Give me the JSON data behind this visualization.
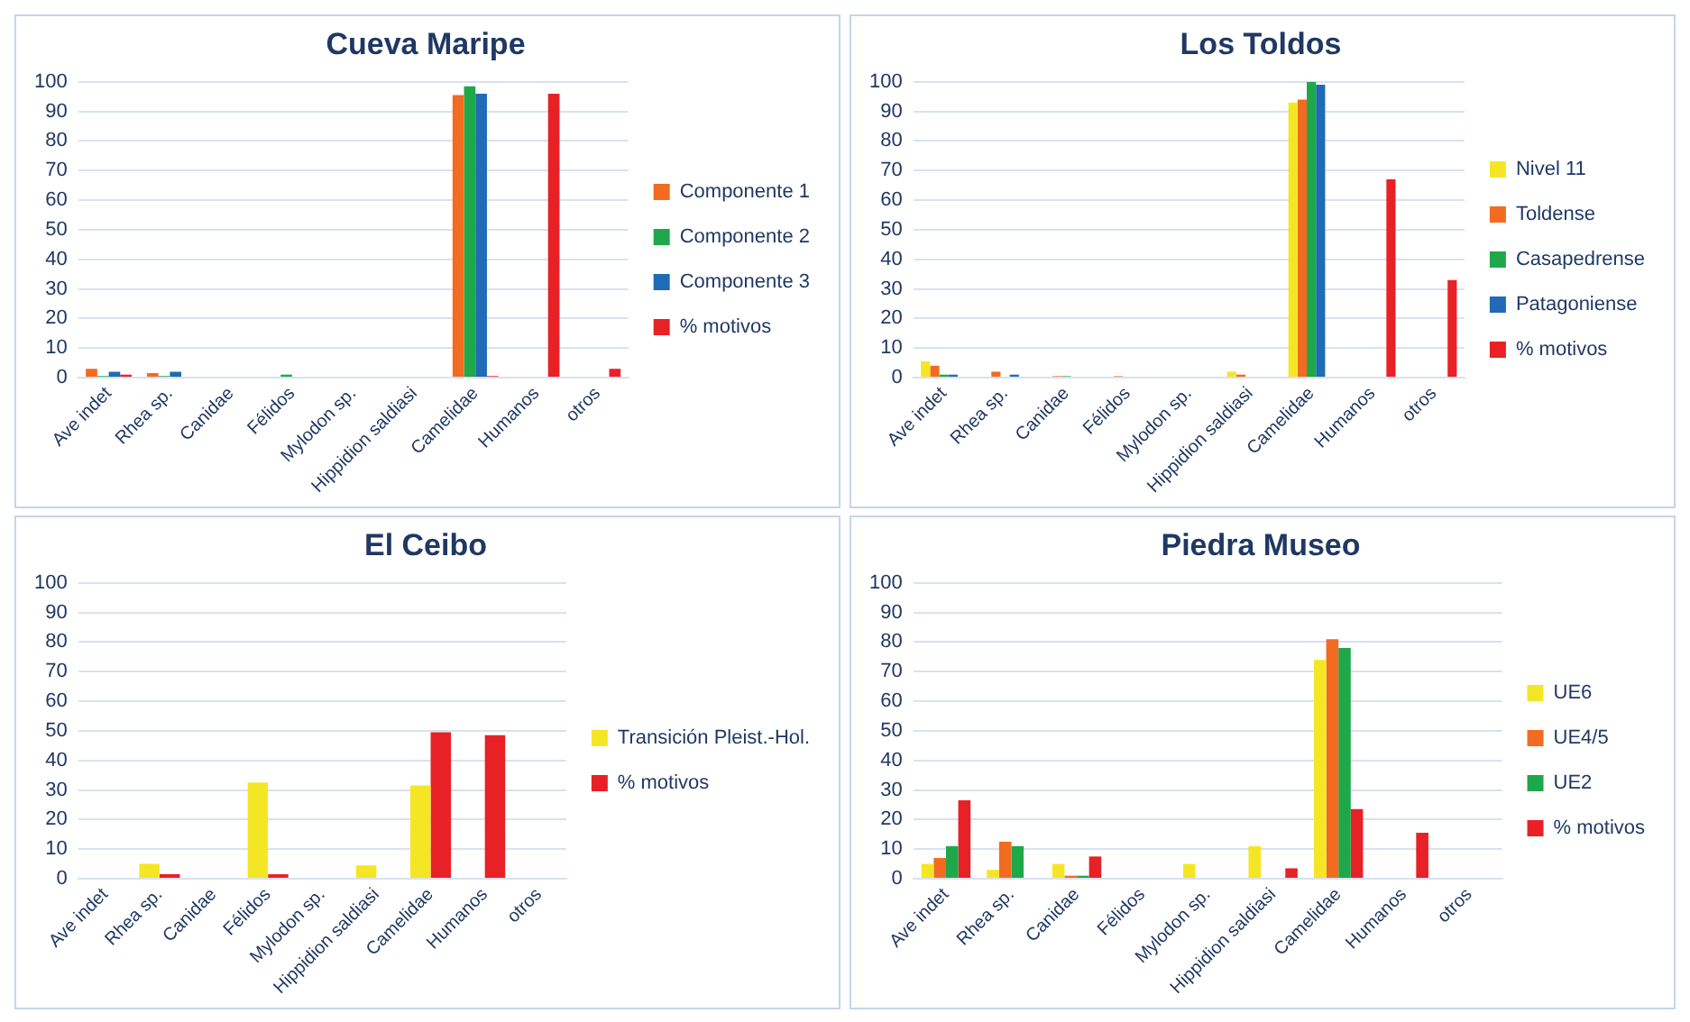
{
  "chart_data": [
    {
      "type": "bar",
      "title": "Cueva Maripe",
      "categories": [
        "Ave indet",
        "Rhea sp.",
        "Canidae",
        "Félidos",
        "Mylodon sp.",
        "Hippidion saldiasi",
        "Camelidae",
        "Humanos",
        "otros"
      ],
      "series": [
        {
          "name": "Componente 1",
          "color": "#f26b21",
          "values": [
            3,
            1.5,
            0,
            0,
            0,
            0,
            95.5,
            0,
            0
          ]
        },
        {
          "name": "Componente 2",
          "color": "#1fa84a",
          "values": [
            0.5,
            0.5,
            0,
            1,
            0,
            0,
            98.5,
            0,
            0
          ]
        },
        {
          "name": "Componente 3",
          "color": "#1f6bb5",
          "values": [
            2,
            2,
            0,
            0,
            0,
            0,
            96,
            0,
            0
          ]
        },
        {
          "name": "% motivos",
          "color": "#e82127",
          "values": [
            1,
            0,
            0,
            0,
            0,
            0,
            0.5,
            96,
            3
          ]
        }
      ],
      "ylim": [
        0,
        100
      ],
      "yticks": [
        0,
        10,
        20,
        30,
        40,
        50,
        60,
        70,
        80,
        90,
        100
      ],
      "grid": "y",
      "legend": "right"
    },
    {
      "type": "bar",
      "title": "Los Toldos",
      "categories": [
        "Ave indet",
        "Rhea sp.",
        "Canidae",
        "Félidos",
        "Mylodon sp.",
        "Hippidion saldiasi",
        "Camelidae",
        "Humanos",
        "otros"
      ],
      "series": [
        {
          "name": "Nivel 11",
          "color": "#f5e625",
          "values": [
            5.5,
            0,
            0,
            0,
            0,
            2,
            93,
            0,
            0
          ]
        },
        {
          "name": "Toldense",
          "color": "#f26b21",
          "values": [
            4,
            2,
            0.5,
            0.5,
            0,
            1,
            94,
            0,
            0
          ]
        },
        {
          "name": "Casapedrense",
          "color": "#1fa84a",
          "values": [
            1,
            0,
            0.5,
            0,
            0,
            0,
            100,
            0,
            0
          ]
        },
        {
          "name": "Patagoniense",
          "color": "#1f6bb5",
          "values": [
            1,
            1,
            0,
            0,
            0,
            0,
            99,
            0,
            0
          ]
        },
        {
          "name": "% motivos",
          "color": "#e82127",
          "values": [
            0,
            0,
            0,
            0,
            0,
            0,
            0,
            67,
            33
          ]
        }
      ],
      "ylim": [
        0,
        100
      ],
      "yticks": [
        0,
        10,
        20,
        30,
        40,
        50,
        60,
        70,
        80,
        90,
        100
      ],
      "grid": "y",
      "legend": "right"
    },
    {
      "type": "bar",
      "title": "El Ceibo",
      "categories": [
        "Ave indet",
        "Rhea sp.",
        "Canidae",
        "Félidos",
        "Mylodon sp.",
        "Hippidion saldiasi",
        "Camelidae",
        "Humanos",
        "otros"
      ],
      "series": [
        {
          "name": "Transición Pleist.-Hol.",
          "color": "#f5e625",
          "values": [
            0,
            5,
            0,
            32.5,
            0,
            4.5,
            31.5,
            0,
            0
          ]
        },
        {
          "name": "% motivos",
          "color": "#e82127",
          "values": [
            0,
            1.5,
            0,
            1.5,
            0,
            0,
            49.5,
            48.5,
            0
          ]
        }
      ],
      "ylim": [
        0,
        100
      ],
      "yticks": [
        0,
        10,
        20,
        30,
        40,
        50,
        60,
        70,
        80,
        90,
        100
      ],
      "grid": "y",
      "legend": "right"
    },
    {
      "type": "bar",
      "title": "Piedra Museo",
      "categories": [
        "Ave indet",
        "Rhea sp.",
        "Canidae",
        "Félidos",
        "Mylodon sp.",
        "Hippidion saldiasi",
        "Camelidae",
        "Humanos",
        "otros"
      ],
      "series": [
        {
          "name": "UE6",
          "color": "#f5e625",
          "values": [
            5,
            3,
            5,
            0,
            5,
            11,
            74,
            0,
            0
          ]
        },
        {
          "name": "UE4/5",
          "color": "#f26b21",
          "values": [
            7,
            12.5,
            1,
            0,
            0,
            0,
            81,
            0,
            0
          ]
        },
        {
          "name": "UE2",
          "color": "#1fa84a",
          "values": [
            11,
            11,
            1,
            0,
            0,
            0,
            78,
            0,
            0
          ]
        },
        {
          "name": "% motivos",
          "color": "#e82127",
          "values": [
            26.5,
            0,
            7.5,
            0,
            0,
            3.5,
            23.5,
            15.5,
            0
          ]
        }
      ],
      "ylim": [
        0,
        100
      ],
      "yticks": [
        0,
        10,
        20,
        30,
        40,
        50,
        60,
        70,
        80,
        90,
        100
      ],
      "grid": "y",
      "legend": "right"
    }
  ]
}
